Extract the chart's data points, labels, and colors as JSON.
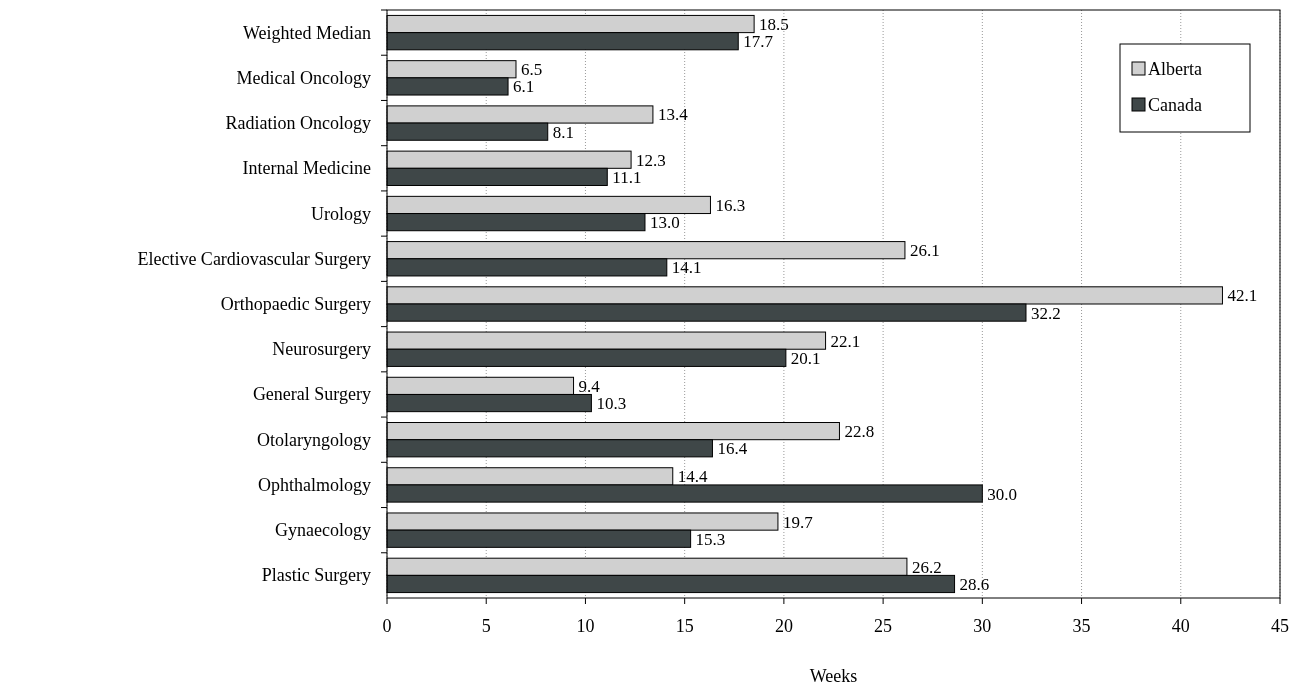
{
  "chart_data": {
    "type": "bar",
    "orientation": "horizontal",
    "xlabel": "Weeks",
    "categories": [
      "Weighted Median",
      "Medical Oncology",
      "Radiation Oncology",
      "Internal Medicine",
      "Urology",
      "Elective Cardiovascular Surgery",
      "Orthopaedic Surgery",
      "Neurosurgery",
      "General Surgery",
      "Otolaryngology",
      "Ophthalmology",
      "Gynaecology",
      "Plastic Surgery"
    ],
    "series": [
      {
        "name": "Alberta",
        "color": "#d0d0d0",
        "values": [
          18.5,
          6.5,
          13.4,
          12.3,
          16.3,
          26.1,
          42.1,
          22.1,
          9.4,
          22.8,
          14.4,
          19.7,
          26.2
        ],
        "value_labels": [
          "18.5",
          "6.5",
          "13.4",
          "12.3",
          "16.3",
          "26.1",
          "42.1",
          "22.1",
          "9.4",
          "22.8",
          "14.4",
          "19.7",
          "26.2"
        ]
      },
      {
        "name": "Canada",
        "color": "#3f4748",
        "values": [
          17.7,
          6.1,
          8.1,
          11.1,
          13.0,
          14.1,
          32.2,
          20.1,
          10.3,
          16.4,
          30.0,
          15.3,
          28.6
        ],
        "value_labels": [
          "17.7",
          "6.1",
          "8.1",
          "11.1",
          "13.0",
          "14.1",
          "32.2",
          "20.1",
          "10.3",
          "16.4",
          "30.0",
          "15.3",
          "28.6"
        ]
      }
    ],
    "xlim": [
      0,
      45
    ],
    "xticks": [
      0,
      5,
      10,
      15,
      20,
      25,
      30,
      35,
      40,
      45
    ],
    "grid": "x",
    "legend": "top right"
  }
}
